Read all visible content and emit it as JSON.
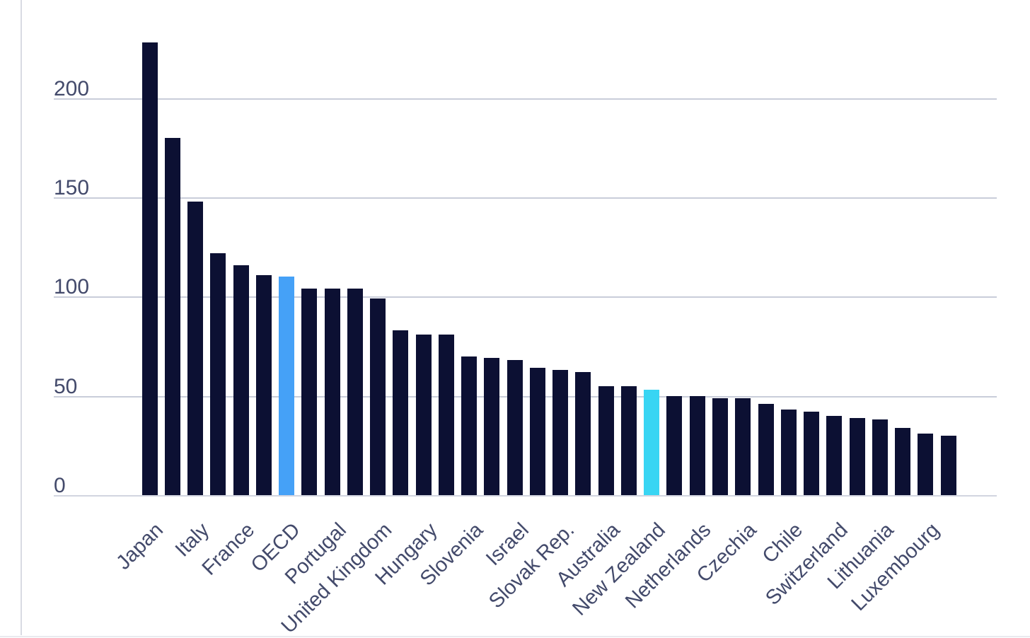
{
  "page": {
    "background": "#ffffff",
    "left_border_color": "#d9dbe3",
    "bottom_border_color": "#e9eaef"
  },
  "chart_data": {
    "type": "bar",
    "title": "",
    "xlabel": "",
    "ylabel": "",
    "ylim": [
      0,
      235
    ],
    "yticks": [
      "0",
      "50",
      "100",
      "150",
      "200"
    ],
    "ytick_values": [
      0,
      50,
      100,
      150,
      200
    ],
    "grid": "horizontal",
    "legend": "none",
    "colors": {
      "navy": "#0c1033",
      "blue": "#45a1f7",
      "cyan": "#38d5f3",
      "tick_text": "#434a6b",
      "gridline": "#c9cdda",
      "axisline": "#d2d5e0"
    },
    "bars": [
      {
        "label": "Japan",
        "value": 228,
        "color": "navy"
      },
      {
        "label": "",
        "value": 180,
        "color": "navy"
      },
      {
        "label": "Italy",
        "value": 148,
        "color": "navy"
      },
      {
        "label": "",
        "value": 122,
        "color": "navy"
      },
      {
        "label": "France",
        "value": 116,
        "color": "navy"
      },
      {
        "label": "",
        "value": 111,
        "color": "navy"
      },
      {
        "label": "OECD",
        "value": 110,
        "color": "blue"
      },
      {
        "label": "",
        "value": 104,
        "color": "navy"
      },
      {
        "label": "Portugal",
        "value": 104,
        "color": "navy"
      },
      {
        "label": "",
        "value": 104,
        "color": "navy"
      },
      {
        "label": "United Kingdom",
        "value": 99,
        "color": "navy"
      },
      {
        "label": "",
        "value": 83,
        "color": "navy"
      },
      {
        "label": "Hungary",
        "value": 81,
        "color": "navy"
      },
      {
        "label": "",
        "value": 81,
        "color": "navy"
      },
      {
        "label": "Slovenia",
        "value": 70,
        "color": "navy"
      },
      {
        "label": "",
        "value": 69,
        "color": "navy"
      },
      {
        "label": "Israel",
        "value": 68,
        "color": "navy"
      },
      {
        "label": "",
        "value": 64,
        "color": "navy"
      },
      {
        "label": "Slovak Rep.",
        "value": 63,
        "color": "navy"
      },
      {
        "label": "",
        "value": 62,
        "color": "navy"
      },
      {
        "label": "Australia",
        "value": 55,
        "color": "navy"
      },
      {
        "label": "",
        "value": 55,
        "color": "navy"
      },
      {
        "label": "New Zealand",
        "value": 53,
        "color": "cyan"
      },
      {
        "label": "",
        "value": 50,
        "color": "navy"
      },
      {
        "label": "Netherlands",
        "value": 50,
        "color": "navy"
      },
      {
        "label": "",
        "value": 49,
        "color": "navy"
      },
      {
        "label": "Czechia",
        "value": 49,
        "color": "navy"
      },
      {
        "label": "",
        "value": 46,
        "color": "navy"
      },
      {
        "label": "Chile",
        "value": 43,
        "color": "navy"
      },
      {
        "label": "",
        "value": 42,
        "color": "navy"
      },
      {
        "label": "Switzerland",
        "value": 40,
        "color": "navy"
      },
      {
        "label": "",
        "value": 39,
        "color": "navy"
      },
      {
        "label": "Lithuania",
        "value": 38,
        "color": "navy"
      },
      {
        "label": "",
        "value": 34,
        "color": "navy"
      },
      {
        "label": "Luxembourg",
        "value": 31,
        "color": "navy"
      },
      {
        "label": "",
        "value": 30,
        "color": "navy"
      }
    ]
  }
}
